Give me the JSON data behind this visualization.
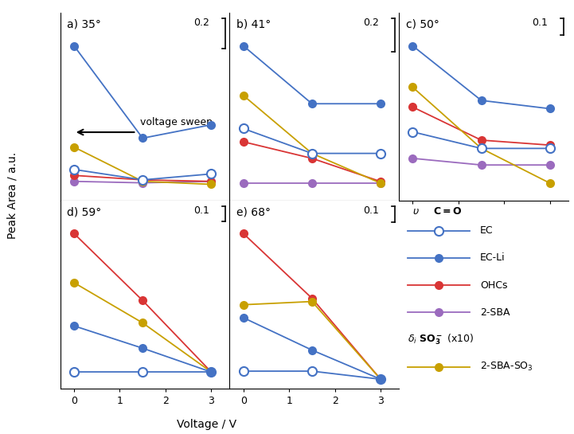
{
  "panels": [
    {
      "label": "a) 35°",
      "scalebar": "0.2",
      "x": [
        0,
        1.5,
        3
      ],
      "EC_Li": [
        1.0,
        0.38,
        0.47
      ],
      "OHCs": [
        0.13,
        0.1,
        0.09
      ],
      "SBA2": [
        0.09,
        0.08,
        0.09
      ],
      "SBA_SO3": [
        0.32,
        0.09,
        0.07
      ],
      "EC_open": [
        0.17,
        0.1,
        0.14
      ],
      "has_SBA": true,
      "show_arrow": true
    },
    {
      "label": "b) 41°",
      "scalebar": "0.2",
      "x": [
        0,
        1.5,
        3
      ],
      "EC_Li": [
        0.9,
        0.55,
        0.55
      ],
      "OHCs": [
        0.32,
        0.22,
        0.08
      ],
      "SBA2": [
        0.07,
        0.07,
        0.07
      ],
      "SBA_SO3": [
        0.6,
        0.25,
        0.07
      ],
      "EC_open": [
        0.4,
        0.25,
        0.25
      ],
      "has_SBA": true,
      "show_arrow": false
    },
    {
      "label": "c) 50°",
      "scalebar": "0.1",
      "x": [
        0,
        1.5,
        3
      ],
      "EC_Li": [
        0.9,
        0.57,
        0.52
      ],
      "OHCs": [
        0.53,
        0.33,
        0.3
      ],
      "SBA2": [
        0.22,
        0.18,
        0.18
      ],
      "SBA_SO3": [
        0.65,
        0.28,
        0.07
      ],
      "EC_open": [
        0.38,
        0.28,
        0.28
      ],
      "has_SBA": true,
      "show_arrow": false
    },
    {
      "label": "d) 59°",
      "scalebar": "0.1",
      "x": [
        0,
        1.5,
        3
      ],
      "EC_Li": [
        0.38,
        0.23,
        0.07
      ],
      "OHCs": [
        1.0,
        0.55,
        0.07
      ],
      "SBA2": null,
      "SBA_SO3": [
        0.67,
        0.4,
        0.07
      ],
      "EC_open": [
        0.07,
        0.07,
        0.07
      ],
      "has_SBA": false,
      "show_arrow": false
    },
    {
      "label": "e) 68°",
      "scalebar": "0.1",
      "x": [
        0,
        1.5,
        3
      ],
      "EC_Li": [
        0.4,
        0.2,
        0.02
      ],
      "OHCs": [
        0.92,
        0.52,
        0.02
      ],
      "SBA2": null,
      "SBA_SO3": [
        0.48,
        0.5,
        0.02
      ],
      "EC_open": [
        0.07,
        0.07,
        0.02
      ],
      "has_SBA": false,
      "show_arrow": false
    }
  ],
  "color_EC": "#4472C4",
  "color_OHCs": "#D93535",
  "color_SBA2": "#9B6BBE",
  "color_SO3": "#C8A000",
  "xlabel": "Voltage / V",
  "ylabel": "Peak Area / a.u.",
  "background": "#FFFFFF"
}
